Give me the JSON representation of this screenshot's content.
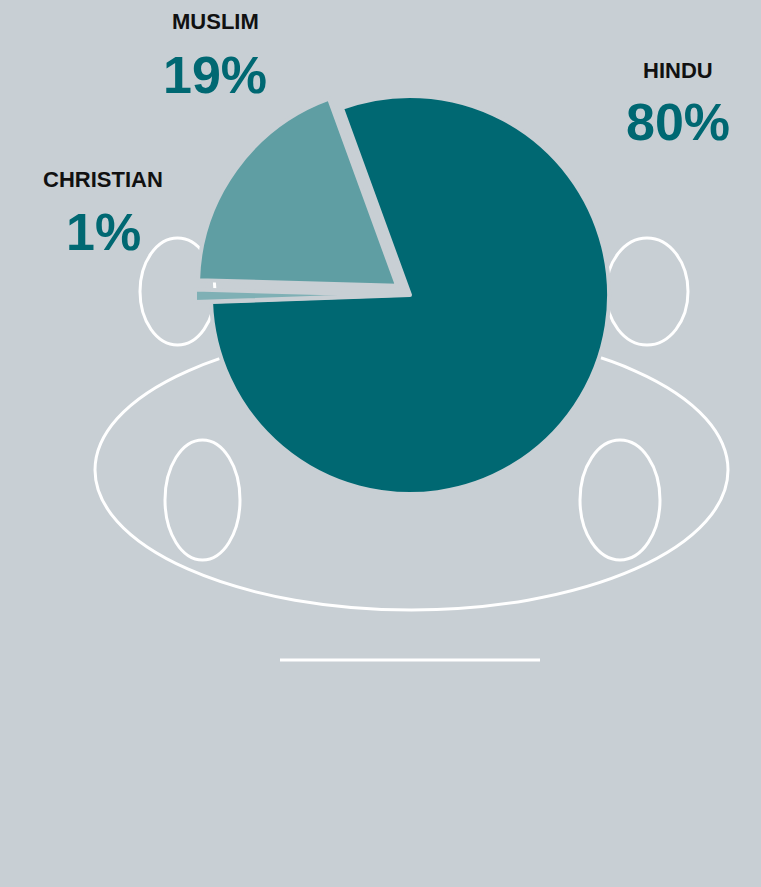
{
  "chart_data": {
    "type": "pie",
    "categories": [
      "HINDU",
      "CHRISTIAN",
      "MUSLIM"
    ],
    "values": [
      80,
      1,
      19
    ],
    "value_labels": [
      "80%",
      "1%",
      "19%"
    ],
    "colors": [
      "#006872",
      "#7fb0b5",
      "#5f9ea3"
    ],
    "data_labels": true
  }
}
